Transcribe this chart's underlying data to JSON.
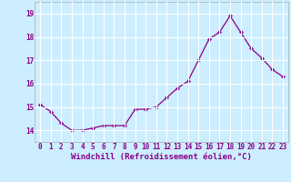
{
  "x": [
    0,
    1,
    2,
    3,
    4,
    5,
    6,
    7,
    8,
    9,
    10,
    11,
    12,
    13,
    14,
    15,
    16,
    17,
    18,
    19,
    20,
    21,
    22,
    23
  ],
  "y": [
    15.1,
    14.8,
    14.3,
    14.0,
    14.0,
    14.1,
    14.2,
    14.2,
    14.2,
    14.9,
    14.9,
    15.0,
    15.4,
    15.8,
    16.1,
    17.0,
    17.9,
    18.2,
    18.9,
    18.2,
    17.5,
    17.1,
    16.6,
    16.3
  ],
  "line_color": "#880088",
  "marker": "D",
  "marker_size": 2.0,
  "line_width": 0.9,
  "bg_color": "#cceeff",
  "grid_color": "#ffffff",
  "tick_color": "#880088",
  "label_color": "#880088",
  "xlabel": "Windchill (Refroidissement éolien,°C)",
  "ylim": [
    13.5,
    19.5
  ],
  "yticks": [
    14,
    15,
    16,
    17,
    18,
    19
  ],
  "xlim": [
    -0.5,
    23.5
  ],
  "xticks": [
    0,
    1,
    2,
    3,
    4,
    5,
    6,
    7,
    8,
    9,
    10,
    11,
    12,
    13,
    14,
    15,
    16,
    17,
    18,
    19,
    20,
    21,
    22,
    23
  ],
  "font_size": 5.5,
  "xlabel_fontsize": 6.5
}
